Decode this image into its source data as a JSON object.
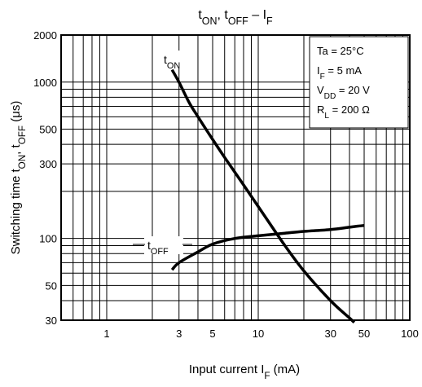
{
  "chart_data": {
    "type": "line",
    "title": {
      "parts": [
        {
          "t": "t",
          "sub": "ON"
        },
        {
          "t": ", t",
          "sub": "OFF"
        },
        {
          "t": " – I",
          "sub": "F"
        }
      ]
    },
    "xlabel": {
      "parts": [
        {
          "t": "Input current   I",
          "sub": "F"
        },
        {
          "t": "   (mA)"
        }
      ]
    },
    "ylabel": {
      "parts": [
        {
          "t": "Switching time   t",
          "sub": "ON"
        },
        {
          "t": ", t",
          "sub": "OFF"
        },
        {
          "t": "    (μs)"
        }
      ]
    },
    "x_scale": "log",
    "y_scale": "log",
    "xlim": [
      0.5,
      100
    ],
    "ylim": [
      30,
      2000
    ],
    "x_ticks": [
      1,
      3,
      5,
      10,
      30,
      50,
      100
    ],
    "y_ticks": [
      30,
      50,
      100,
      300,
      500,
      1000,
      2000
    ],
    "grid": true,
    "conditions": [
      {
        "parts": [
          {
            "t": "Ta = 25°C"
          }
        ]
      },
      {
        "parts": [
          {
            "t": "I",
            "sub": "F"
          },
          {
            "t": " = 5 mA"
          }
        ]
      },
      {
        "parts": [
          {
            "t": "V",
            "sub": "DD"
          },
          {
            "t": " = 20 V"
          }
        ]
      },
      {
        "parts": [
          {
            "t": "R",
            "sub": "L"
          },
          {
            "t": " = 200 Ω"
          }
        ]
      }
    ],
    "series": [
      {
        "name": {
          "parts": [
            {
              "t": "t",
              "sub": "ON"
            }
          ]
        },
        "x": [
          2.7,
          3.0,
          3.5,
          4.0,
          5.0,
          6.0,
          8.0,
          10.0,
          15.0,
          20.0,
          30.0,
          40.0,
          43.0
        ],
        "y": [
          1200,
          1000,
          740,
          600,
          430,
          330,
          220,
          160,
          90,
          62,
          40,
          31,
          29
        ]
      },
      {
        "name": {
          "parts": [
            {
              "t": "t",
              "sub": "OFF"
            }
          ]
        },
        "x": [
          2.7,
          3.0,
          4.0,
          5.0,
          7.0,
          10.0,
          15.0,
          20.0,
          30.0,
          40.0,
          50.0
        ],
        "y": [
          63,
          70,
          82,
          92,
          100,
          104,
          108,
          111,
          114,
          118,
          121
        ]
      }
    ]
  }
}
